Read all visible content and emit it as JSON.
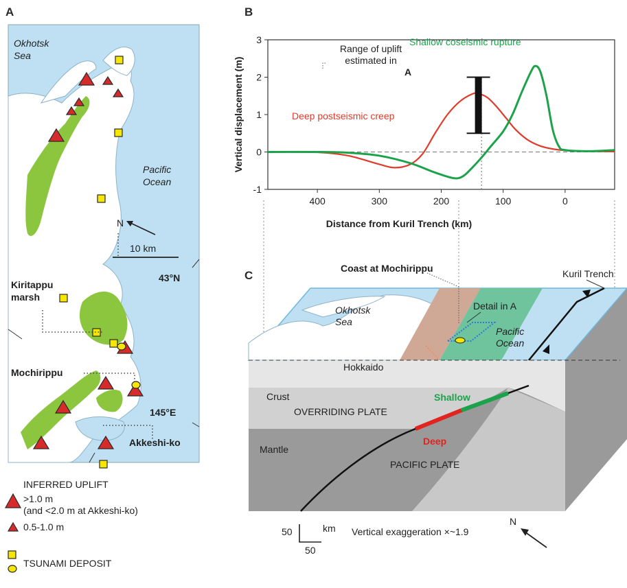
{
  "panels": {
    "a": "A",
    "b": "B",
    "c": "C"
  },
  "map_a": {
    "labels": {
      "okhotsk_sea": "Okhotsk\nSea",
      "pacific_ocean": "Pacific\nOcean",
      "north": "N",
      "scale": "10 km",
      "lat": "43°N",
      "lon": "145°E",
      "kiritappu": "Kiritappu\nmarsh",
      "mochirippu": "Mochirippu",
      "akkeshi": "Akkeshi-ko"
    },
    "colors": {
      "sea": "#bfe0f2",
      "land": "#ffffff",
      "marsh": "#8cc63f",
      "uplift": "#d62b2b",
      "tsunami": "#f6e600"
    }
  },
  "legend": {
    "title": "INFERRED UPLIFT",
    "large": ">1.0 m",
    "large_note": "(and <2.0 m at Akkeshi-ko)",
    "small": "0.5-1.0 m",
    "tsunami": "TSUNAMI DEPOSIT"
  },
  "chart_data": {
    "type": "line",
    "xlabel": "Distance from Kuril Trench (km)",
    "ylabel": "Vertical displacement (m)",
    "xlim": [
      480,
      -80
    ],
    "ylim": [
      -1,
      3
    ],
    "x_ticks": [
      400,
      300,
      200,
      100,
      0
    ],
    "y_ticks": [
      -1,
      0,
      1,
      2,
      3
    ],
    "series": [
      {
        "name": "Deep postseismic creep",
        "color": "#e03a2a",
        "points": [
          [
            480,
            0
          ],
          [
            400,
            -0.01
          ],
          [
            350,
            -0.1
          ],
          [
            300,
            -0.33
          ],
          [
            275,
            -0.42
          ],
          [
            250,
            -0.33
          ],
          [
            230,
            -0.05
          ],
          [
            210,
            0.5
          ],
          [
            190,
            1.0
          ],
          [
            170,
            1.35
          ],
          [
            150,
            1.55
          ],
          [
            140,
            1.56
          ],
          [
            125,
            1.45
          ],
          [
            110,
            1.2
          ],
          [
            95,
            0.9
          ],
          [
            80,
            0.6
          ],
          [
            60,
            0.32
          ],
          [
            40,
            0.16
          ],
          [
            20,
            0.08
          ],
          [
            0,
            0.04
          ],
          [
            -40,
            0.02
          ],
          [
            -80,
            0.01
          ]
        ]
      },
      {
        "name": "Shallow coseismic rupture",
        "color": "#1ca24a",
        "points": [
          [
            480,
            0
          ],
          [
            400,
            0
          ],
          [
            350,
            -0.02
          ],
          [
            300,
            -0.1
          ],
          [
            250,
            -0.3
          ],
          [
            210,
            -0.55
          ],
          [
            180,
            -0.7
          ],
          [
            165,
            -0.65
          ],
          [
            150,
            -0.42
          ],
          [
            135,
            -0.15
          ],
          [
            120,
            0.15
          ],
          [
            100,
            0.55
          ],
          [
            85,
            1.0
          ],
          [
            70,
            1.6
          ],
          [
            55,
            2.15
          ],
          [
            48,
            2.3
          ],
          [
            40,
            2.15
          ],
          [
            30,
            1.5
          ],
          [
            20,
            0.6
          ],
          [
            10,
            0.15
          ],
          [
            0,
            0.05
          ],
          [
            -40,
            0.02
          ],
          [
            -80,
            0.05
          ]
        ]
      }
    ],
    "range_bar": {
      "x": 140,
      "ymin": 0.5,
      "ymax": 2.0
    },
    "annotations": {
      "range": "Range of uplift\nestimated in",
      "range_ref": "A"
    }
  },
  "block_c": {
    "labels": {
      "coast": "Coast at Mochirippu",
      "trench": "Kuril Trench",
      "okhotsk": "Okhotsk\nSea",
      "detail": "Detail in A",
      "pacific": "Pacific\nOcean",
      "hokkaido": "Hokkaido",
      "crust": "Crust",
      "overriding": "OVERRIDING PLATE",
      "shallow": "Shallow",
      "deep": "Deep",
      "mantle": "Mantle",
      "pacific_plate": "PACIFIC PLATE"
    },
    "scale": {
      "h": "50",
      "v": "50",
      "unit": "km"
    },
    "exaggeration": "Vertical exaggeration ×~1.9",
    "north": "N"
  }
}
